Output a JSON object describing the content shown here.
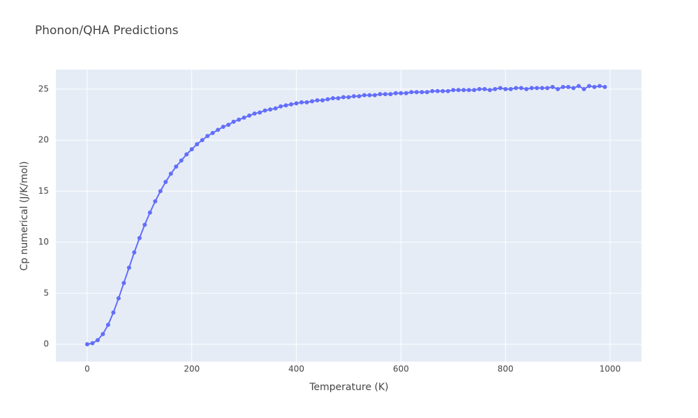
{
  "chart_data": {
    "type": "line",
    "title": "Phonon/QHA Predictions",
    "x_label": "Temperature (K)",
    "y_label": "Cp numerical (J/K/mol)",
    "x": [
      0,
      10,
      20,
      30,
      40,
      50,
      60,
      70,
      80,
      90,
      100,
      110,
      120,
      130,
      140,
      150,
      160,
      170,
      180,
      190,
      200,
      210,
      220,
      230,
      240,
      250,
      260,
      270,
      280,
      290,
      300,
      310,
      320,
      330,
      340,
      350,
      360,
      370,
      380,
      390,
      400,
      410,
      420,
      430,
      440,
      450,
      460,
      470,
      480,
      490,
      500,
      510,
      520,
      530,
      540,
      550,
      560,
      570,
      580,
      590,
      600,
      610,
      620,
      630,
      640,
      650,
      660,
      670,
      680,
      690,
      700,
      710,
      720,
      730,
      740,
      750,
      760,
      770,
      780,
      790,
      800,
      810,
      820,
      830,
      840,
      850,
      860,
      870,
      880,
      890,
      900,
      910,
      920,
      930,
      940,
      950,
      960,
      970,
      980,
      990
    ],
    "series": [
      {
        "color": "#636efa",
        "values": [
          0,
          0.1,
          0.4,
          1.0,
          1.9,
          3.1,
          4.5,
          6.0,
          7.5,
          9.0,
          10.4,
          11.7,
          12.9,
          14.0,
          15.0,
          15.9,
          16.7,
          17.4,
          18.0,
          18.6,
          19.1,
          19.6,
          20.0,
          20.4,
          20.7,
          21.0,
          21.3,
          21.5,
          21.8,
          22.0,
          22.2,
          22.4,
          22.6,
          22.7,
          22.9,
          23.0,
          23.1,
          23.3,
          23.4,
          23.5,
          23.6,
          23.7,
          23.7,
          23.8,
          23.9,
          23.9,
          24.0,
          24.1,
          24.1,
          24.2,
          24.2,
          24.3,
          24.3,
          24.4,
          24.4,
          24.4,
          24.5,
          24.5,
          24.5,
          24.6,
          24.6,
          24.6,
          24.7,
          24.7,
          24.7,
          24.7,
          24.8,
          24.8,
          24.8,
          24.8,
          24.9,
          24.9,
          24.9,
          24.9,
          24.9,
          25.0,
          25.0,
          24.9,
          25.0,
          25.1,
          25.0,
          25.0,
          25.1,
          25.1,
          25.0,
          25.1,
          25.1,
          25.1,
          25.1,
          25.2,
          25.0,
          25.2,
          25.2,
          25.1,
          25.3,
          25.0,
          25.3,
          25.2,
          25.3,
          25.2
        ]
      }
    ],
    "xlim": [
      -60,
      1060
    ],
    "ylim": [
      -1.7,
      26.9
    ],
    "xticks": [
      0,
      200,
      400,
      600,
      800,
      1000
    ],
    "yticks": [
      0,
      5,
      10,
      15,
      20,
      25
    ],
    "grid": true
  }
}
